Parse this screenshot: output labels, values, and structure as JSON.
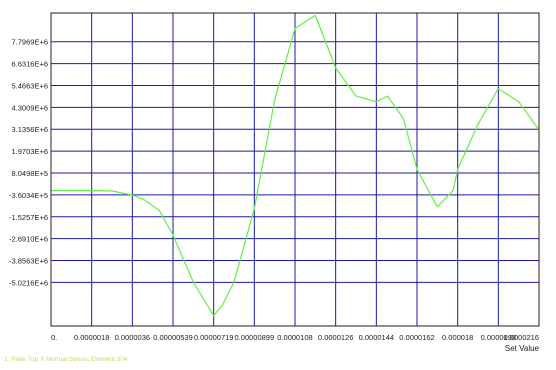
{
  "chart_data": {
    "type": "line",
    "xlabel": "Set Value",
    "ylabel": "",
    "xlim": [
      0,
      2.16e-05
    ],
    "ylim": [
      -7343500,
      9326700
    ],
    "x_tick_values": [
      0,
      1.8e-06,
      3.6e-06,
      5.4e-06,
      7.2e-06,
      9e-06,
      1.08e-05,
      1.26e-05,
      1.44e-05,
      1.62e-05,
      1.8e-05,
      1.98e-05,
      2.16e-05
    ],
    "x_tick_labels": [
      "0.",
      "0.0000018",
      "0.0000036",
      "0.00000539",
      "0.00000719",
      "0.00000899",
      "0.0000108",
      "0.0000126",
      "0.0000144",
      "0.0000162",
      "0.000018",
      "0.0000198",
      "0.0000216"
    ],
    "y_tick_values": [
      7796900,
      6631600,
      5466300,
      4300900,
      3135600,
      1970300,
      804980,
      -360340,
      -1525700,
      -2691000,
      -3856300,
      -5021600
    ],
    "y_tick_labels": [
      "7.7969E+6",
      "6.6316E+6",
      "5.4663E+6",
      "4.3009E+6",
      "3.1356E+6",
      "1.9703E+6",
      "8.0498E+5",
      "-3.6034E+5",
      "-1.5257E+6",
      "-2.6910E+6",
      "-3.8563E+6",
      "-5.0216E+6"
    ],
    "grid": true,
    "legend_position": "bottom-left",
    "series": [
      {
        "name": "1: Plate Top X Normal Stress, Element 304",
        "color": "#66ee44",
        "x": [
          0,
          1.8e-06,
          2.7e-06,
          3.6e-06,
          4.1e-06,
          4.8e-06,
          5.4e-06,
          6.3e-06,
          7.2e-06,
          7.6e-06,
          8.1e-06,
          9e-06,
          9.9e-06,
          1.08e-05,
          1.17e-05,
          1.26e-05,
          1.35e-05,
          1.44e-05,
          1.49e-05,
          1.56e-05,
          1.62e-05,
          1.71e-05,
          1.78e-05,
          1.8e-05,
          1.89e-05,
          1.98e-05,
          2.07e-05,
          2.16e-05
        ],
        "y": [
          -130000,
          -130000,
          -150000,
          -370000,
          -600000,
          -1200000,
          -2500000,
          -5000000,
          -6800000,
          -6200000,
          -5000000,
          -1100000,
          4700000,
          8500000,
          9200000,
          6400000,
          4900000,
          4600000,
          4900000,
          3700000,
          1000000,
          -1000000,
          -130000,
          1000000,
          3400000,
          5300000,
          4600000,
          3100000
        ]
      }
    ]
  }
}
